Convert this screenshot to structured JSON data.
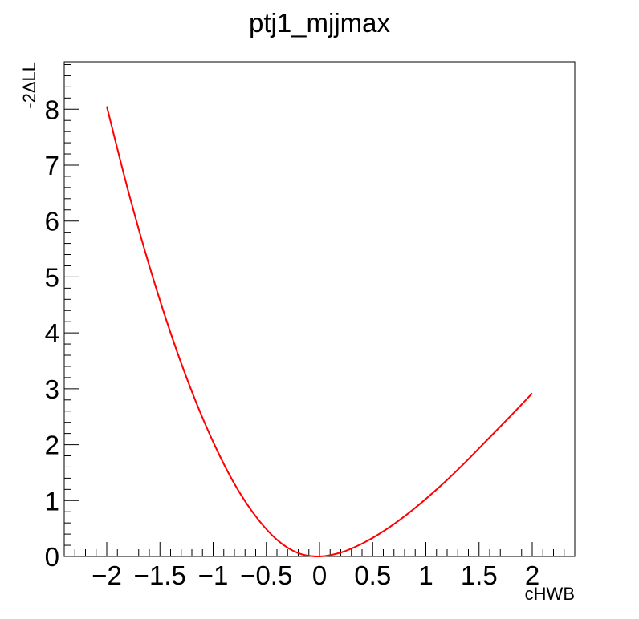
{
  "chart_data": {
    "type": "line",
    "title": "ptj1_mjjmax",
    "xlabel": "cHWB",
    "ylabel": "-2ΔLL",
    "xlim": [
      -2.4,
      2.4
    ],
    "ylim": [
      0,
      8.85
    ],
    "x_ticks": [
      -2,
      -1.5,
      -1,
      -0.5,
      0,
      0.5,
      1,
      1.5,
      2
    ],
    "x_tick_labels": [
      "−2",
      "−1.5",
      "−1",
      "−0.5",
      "0",
      "0.5",
      "1",
      "1.5",
      "2"
    ],
    "y_ticks": [
      0,
      1,
      2,
      3,
      4,
      5,
      6,
      7,
      8
    ],
    "y_tick_labels": [
      "0",
      "1",
      "2",
      "3",
      "4",
      "5",
      "6",
      "7",
      "8"
    ],
    "grid": false,
    "series": [
      {
        "color": "#ff0000",
        "x": [
          -2.0,
          -1.8,
          -1.6,
          -1.4,
          -1.2,
          -1.0,
          -0.8,
          -0.6,
          -0.4,
          -0.2,
          0.0,
          0.2,
          0.4,
          0.6,
          0.8,
          1.0,
          1.2,
          1.4,
          1.6,
          1.8,
          2.0
        ],
        "y": [
          8.05,
          6.55,
          5.2,
          4.0,
          2.95,
          2.05,
          1.3,
          0.72,
          0.3,
          0.06,
          0.0,
          0.07,
          0.23,
          0.45,
          0.72,
          1.03,
          1.37,
          1.74,
          2.13,
          2.52,
          2.92
        ]
      }
    ]
  }
}
